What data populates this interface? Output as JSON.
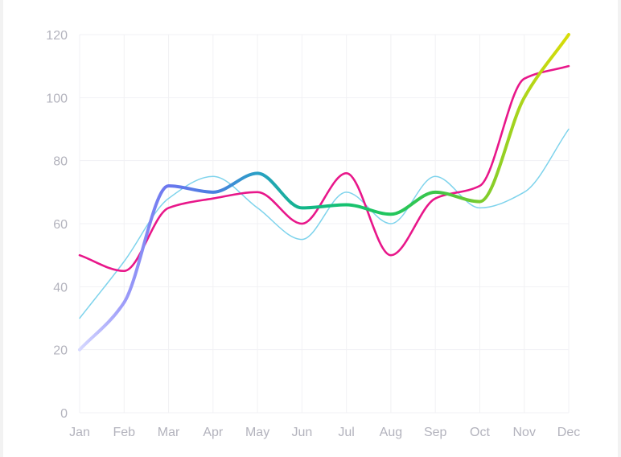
{
  "chart_data": {
    "type": "line",
    "categories": [
      "Jan",
      "Feb",
      "Mar",
      "Apr",
      "May",
      "Jun",
      "Jul",
      "Aug",
      "Sep",
      "Oct",
      "Nov",
      "Dec"
    ],
    "y_ticks": [
      "0",
      "20",
      "40",
      "60",
      "80",
      "100",
      "120"
    ],
    "ylim": [
      0,
      120
    ],
    "grid": true,
    "legend": "none",
    "series": [
      {
        "values": [
          30,
          48,
          68,
          75,
          65,
          55,
          70,
          60,
          75,
          65,
          70,
          90
        ],
        "color": "#7ed3ec",
        "style": "thin"
      },
      {
        "values": [
          50,
          45,
          65,
          68,
          70,
          60,
          76,
          50,
          68,
          72,
          106,
          110
        ],
        "color": "#e8178a",
        "style": "medium"
      },
      {
        "values": [
          20,
          35,
          72,
          70,
          76,
          65,
          66,
          63,
          70,
          67,
          100,
          120
        ],
        "gradient": [
          "#d6d8ff",
          "#9d9cf9",
          "#6a76ee",
          "#4a7fe0",
          "#2aa0c6",
          "#12b58a",
          "#16c270",
          "#22c65c",
          "#3cc64a",
          "#7acb2e",
          "#aed51a",
          "#d8dc08"
        ],
        "style": "thick"
      }
    ]
  }
}
